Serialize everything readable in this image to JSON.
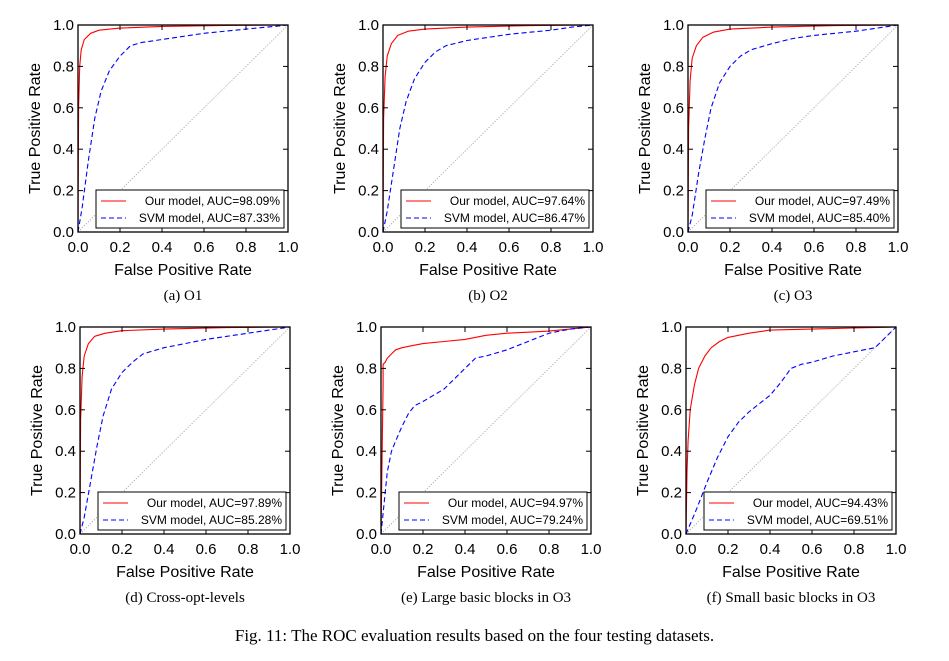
{
  "caption": "Fig. 11: The ROC evaluation results based on the four testing datasets.",
  "colors": {
    "ours": "#ff0000",
    "svm": "#0000ff",
    "diagonal": "#9a9a9a"
  },
  "chart_data": [
    {
      "type": "line",
      "panel_label": "(a) O1",
      "xlabel": "False Positive Rate",
      "ylabel": "True Positive Rate",
      "xlim": [
        0,
        1
      ],
      "ylim": [
        0,
        1
      ],
      "grid": false,
      "legend_position": "bottom-right",
      "x_ticks": [
        "0.0",
        "0.2",
        "0.4",
        "0.6",
        "0.8",
        "1.0"
      ],
      "y_ticks": [
        "0.0",
        "0.2",
        "0.4",
        "0.6",
        "0.8",
        "1.0"
      ],
      "series": [
        {
          "name": "Our model, AUC=98.09%",
          "style": "solid",
          "x": [
            0,
            0.003,
            0.008,
            0.015,
            0.03,
            0.06,
            0.1,
            0.2,
            0.4,
            0.7,
            1.0
          ],
          "y": [
            0,
            0.6,
            0.8,
            0.88,
            0.93,
            0.96,
            0.975,
            0.985,
            0.993,
            0.998,
            1.0
          ]
        },
        {
          "name": "SVM model, AUC=87.33%",
          "style": "dashed",
          "x": [
            0,
            0.02,
            0.05,
            0.08,
            0.11,
            0.15,
            0.2,
            0.25,
            0.3,
            0.4,
            0.5,
            0.6,
            0.7,
            0.8,
            0.9,
            1.0
          ],
          "y": [
            0,
            0.12,
            0.35,
            0.55,
            0.68,
            0.78,
            0.85,
            0.9,
            0.915,
            0.93,
            0.945,
            0.96,
            0.97,
            0.98,
            0.99,
            1.0
          ]
        }
      ]
    },
    {
      "type": "line",
      "panel_label": "(b) O2",
      "xlabel": "False Positive Rate",
      "ylabel": "True Positive Rate",
      "xlim": [
        0,
        1
      ],
      "ylim": [
        0,
        1
      ],
      "grid": false,
      "legend_position": "bottom-right",
      "x_ticks": [
        "0.0",
        "0.2",
        "0.4",
        "0.6",
        "0.8",
        "1.0"
      ],
      "y_ticks": [
        "0.0",
        "0.2",
        "0.4",
        "0.6",
        "0.8",
        "1.0"
      ],
      "series": [
        {
          "name": "Our model, AUC=97.64%",
          "style": "solid",
          "x": [
            0,
            0.003,
            0.01,
            0.02,
            0.04,
            0.07,
            0.12,
            0.2,
            0.4,
            0.7,
            1.0
          ],
          "y": [
            0,
            0.55,
            0.75,
            0.85,
            0.91,
            0.95,
            0.97,
            0.98,
            0.99,
            0.997,
            1.0
          ]
        },
        {
          "name": "SVM model, AUC=86.47%",
          "style": "dashed",
          "x": [
            0,
            0.02,
            0.05,
            0.08,
            0.11,
            0.15,
            0.2,
            0.25,
            0.3,
            0.4,
            0.5,
            0.6,
            0.7,
            0.8,
            0.9,
            1.0
          ],
          "y": [
            0,
            0.1,
            0.3,
            0.5,
            0.63,
            0.74,
            0.82,
            0.87,
            0.9,
            0.925,
            0.94,
            0.955,
            0.965,
            0.975,
            0.99,
            1.0
          ]
        }
      ]
    },
    {
      "type": "line",
      "panel_label": "(c) O3",
      "xlabel": "False Positive Rate",
      "ylabel": "True Positive Rate",
      "xlim": [
        0,
        1
      ],
      "ylim": [
        0,
        1
      ],
      "grid": false,
      "legend_position": "bottom-right",
      "x_ticks": [
        "0.0",
        "0.2",
        "0.4",
        "0.6",
        "0.8",
        "1.0"
      ],
      "y_ticks": [
        "0.0",
        "0.2",
        "0.4",
        "0.6",
        "0.8",
        "1.0"
      ],
      "series": [
        {
          "name": "Our  model, AUC=97.49%",
          "style": "solid",
          "x": [
            0,
            0.003,
            0.01,
            0.02,
            0.04,
            0.07,
            0.12,
            0.2,
            0.4,
            0.7,
            1.0
          ],
          "y": [
            0,
            0.5,
            0.73,
            0.84,
            0.9,
            0.94,
            0.965,
            0.98,
            0.99,
            0.997,
            1.0
          ]
        },
        {
          "name": "SVM model, AUC=85.40%",
          "style": "dashed",
          "x": [
            0,
            0.02,
            0.05,
            0.08,
            0.11,
            0.15,
            0.2,
            0.25,
            0.3,
            0.4,
            0.5,
            0.6,
            0.7,
            0.8,
            0.9,
            1.0
          ],
          "y": [
            0,
            0.08,
            0.28,
            0.45,
            0.6,
            0.72,
            0.8,
            0.85,
            0.88,
            0.91,
            0.935,
            0.95,
            0.96,
            0.97,
            0.985,
            1.0
          ]
        }
      ]
    },
    {
      "type": "line",
      "panel_label": "(d) Cross-opt-levels",
      "xlabel": "False Positive Rate",
      "ylabel": "True Positive Rate",
      "xlim": [
        0,
        1
      ],
      "ylim": [
        0,
        1
      ],
      "grid": false,
      "legend_position": "bottom-right",
      "x_ticks": [
        "0.0",
        "0.2",
        "0.4",
        "0.6",
        "0.8",
        "1.0"
      ],
      "y_ticks": [
        "0.0",
        "0.2",
        "0.4",
        "0.6",
        "0.8",
        "1.0"
      ],
      "series": [
        {
          "name": "Our model, AUC=97.89%",
          "style": "solid",
          "x": [
            0,
            0.003,
            0.01,
            0.02,
            0.04,
            0.07,
            0.12,
            0.2,
            0.4,
            0.7,
            1.0
          ],
          "y": [
            0,
            0.55,
            0.76,
            0.86,
            0.92,
            0.955,
            0.97,
            0.982,
            0.99,
            0.997,
            1.0
          ]
        },
        {
          "name": "SVM model, AUC=85.28%",
          "style": "dashed",
          "x": [
            0,
            0.02,
            0.05,
            0.08,
            0.11,
            0.15,
            0.2,
            0.25,
            0.3,
            0.4,
            0.5,
            0.6,
            0.7,
            0.8,
            0.9,
            1.0
          ],
          "y": [
            0,
            0.08,
            0.25,
            0.42,
            0.57,
            0.7,
            0.78,
            0.83,
            0.87,
            0.9,
            0.92,
            0.94,
            0.955,
            0.97,
            0.985,
            1.0
          ]
        }
      ]
    },
    {
      "type": "line",
      "panel_label": "(e) Large basic blocks in O3",
      "xlabel": "False Positive Rate",
      "ylabel": "True Positive Rate",
      "xlim": [
        0,
        1
      ],
      "ylim": [
        0,
        1
      ],
      "grid": false,
      "legend_position": "bottom-right",
      "x_ticks": [
        "0.0",
        "0.2",
        "0.4",
        "0.6",
        "0.8",
        "1.0"
      ],
      "y_ticks": [
        "0.0",
        "0.2",
        "0.4",
        "0.6",
        "0.8",
        "1.0"
      ],
      "series": [
        {
          "name": "Our model, AUC=94.97%",
          "style": "solid",
          "x": [
            0,
            0.01,
            0.01,
            0.02,
            0.03,
            0.05,
            0.07,
            0.1,
            0.15,
            0.2,
            0.3,
            0.4,
            0.5,
            0.6,
            0.7,
            0.8,
            0.9,
            1.0
          ],
          "y": [
            0,
            0.72,
            0.82,
            0.83,
            0.85,
            0.87,
            0.89,
            0.9,
            0.91,
            0.92,
            0.93,
            0.94,
            0.96,
            0.97,
            0.975,
            0.98,
            0.99,
            1.0
          ]
        },
        {
          "name": "SVM model, AUC=79.24%",
          "style": "dashed",
          "x": [
            0,
            0.03,
            0.05,
            0.07,
            0.1,
            0.13,
            0.16,
            0.2,
            0.25,
            0.3,
            0.35,
            0.4,
            0.45,
            0.5,
            0.6,
            0.7,
            0.8,
            0.9,
            1.0
          ],
          "y": [
            0,
            0.3,
            0.4,
            0.45,
            0.52,
            0.58,
            0.62,
            0.64,
            0.67,
            0.7,
            0.75,
            0.8,
            0.85,
            0.86,
            0.89,
            0.93,
            0.97,
            0.99,
            1.0
          ]
        }
      ]
    },
    {
      "type": "line",
      "panel_label": "(f) Small basic blocks in O3",
      "xlabel": "False Positive Rate",
      "ylabel": "True Positive Rate",
      "xlim": [
        0,
        1
      ],
      "ylim": [
        0,
        1
      ],
      "grid": false,
      "legend_position": "bottom-right",
      "x_ticks": [
        "0.0",
        "0.2",
        "0.4",
        "0.6",
        "0.8",
        "1.0"
      ],
      "y_ticks": [
        "0.0",
        "0.2",
        "0.4",
        "0.6",
        "0.8",
        "1.0"
      ],
      "series": [
        {
          "name": "Our model, AUC=94.43%",
          "style": "solid",
          "x": [
            0,
            0.005,
            0.01,
            0.02,
            0.04,
            0.06,
            0.09,
            0.12,
            0.16,
            0.2,
            0.3,
            0.4,
            0.6,
            0.8,
            1.0
          ],
          "y": [
            0,
            0.3,
            0.45,
            0.6,
            0.72,
            0.8,
            0.86,
            0.9,
            0.93,
            0.95,
            0.97,
            0.985,
            0.99,
            0.995,
            1.0
          ]
        },
        {
          "name": "SVM model, AUC=69.51%",
          "style": "dashed",
          "x": [
            0,
            0.05,
            0.1,
            0.15,
            0.2,
            0.25,
            0.3,
            0.35,
            0.4,
            0.45,
            0.5,
            0.55,
            0.6,
            0.7,
            0.8,
            0.9,
            0.95,
            1.0
          ],
          "y": [
            0,
            0.12,
            0.25,
            0.37,
            0.47,
            0.54,
            0.59,
            0.63,
            0.67,
            0.73,
            0.8,
            0.82,
            0.83,
            0.86,
            0.88,
            0.9,
            0.95,
            1.0
          ]
        }
      ]
    }
  ]
}
